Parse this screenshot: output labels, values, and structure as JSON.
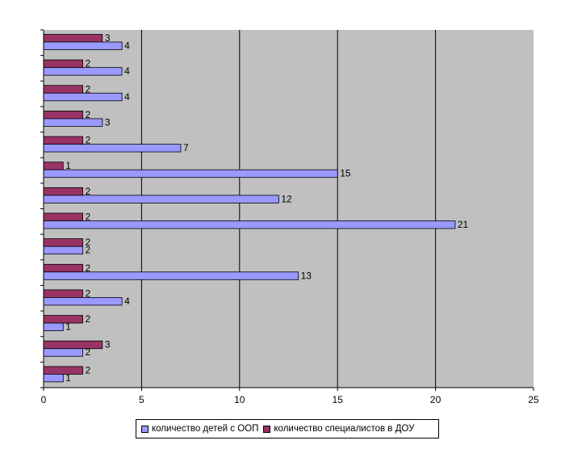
{
  "chart_data": {
    "type": "bar",
    "orientation": "horizontal",
    "xlim": [
      0,
      25
    ],
    "x_ticks": [
      "0",
      "5",
      "10",
      "15",
      "20",
      "25"
    ],
    "grid": "vertical",
    "legend_position": "bottom",
    "series": [
      {
        "name": "количество детей с ООП",
        "color": "#9999ff",
        "values": [
          4,
          4,
          4,
          3,
          7,
          15,
          12,
          21,
          2,
          13,
          4,
          1,
          2,
          1
        ]
      },
      {
        "name": "количество специалистов в ДОУ",
        "color": "#993366",
        "values": [
          3,
          2,
          2,
          2,
          2,
          1,
          2,
          2,
          2,
          2,
          2,
          2,
          3,
          2
        ]
      }
    ]
  }
}
